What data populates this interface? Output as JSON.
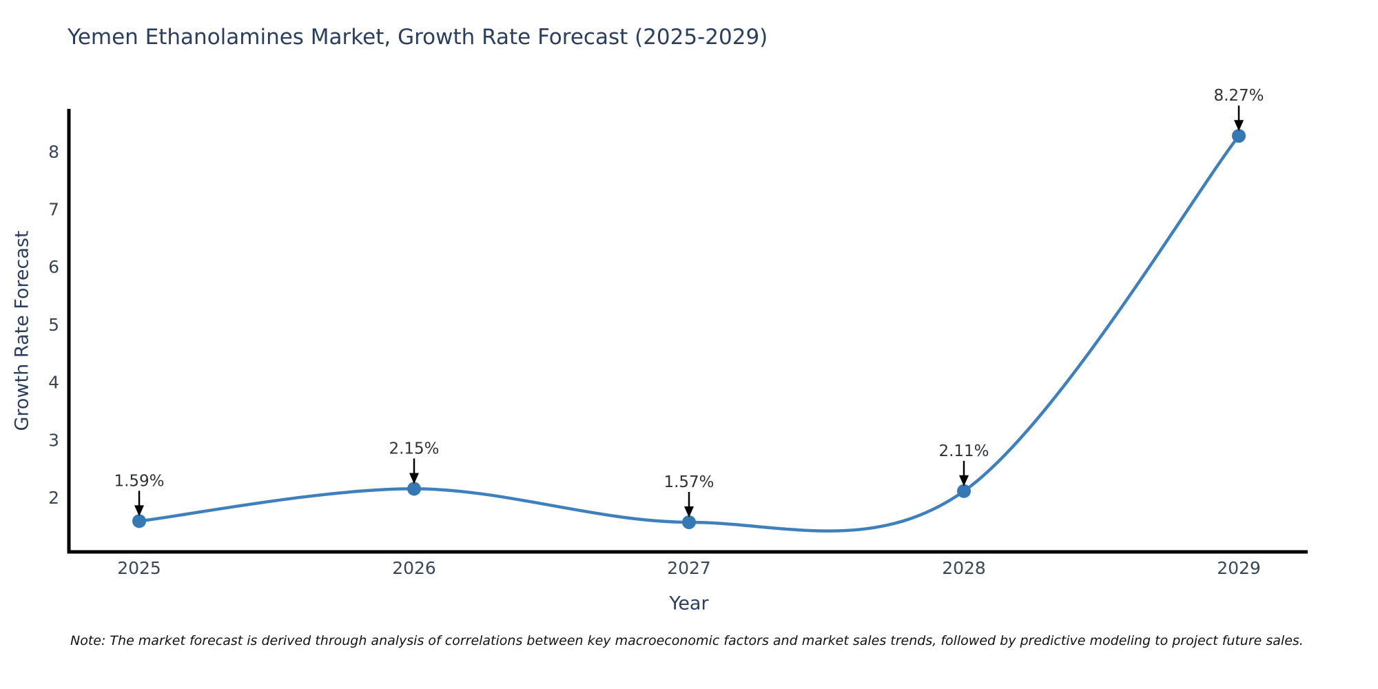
{
  "chart_data": {
    "type": "line",
    "title": "Yemen Ethanolamines Market, Growth Rate Forecast (2025-2029)",
    "xlabel": "Year",
    "ylabel": "Growth Rate Forecast",
    "x": [
      2025,
      2026,
      2027,
      2028,
      2029
    ],
    "values": [
      1.59,
      2.15,
      1.57,
      2.11,
      8.27
    ],
    "point_labels": [
      "1.59%",
      "2.15%",
      "1.57%",
      "2.11%",
      "8.27%"
    ],
    "y_ticks": [
      2,
      3,
      4,
      5,
      6,
      7,
      8
    ],
    "ylim": [
      1.05,
      8.7
    ],
    "line_shape": "spline",
    "grid": false,
    "legend": false,
    "note": "Note: The market forecast is derived through analysis of correlations between key macroeconomic factors and market sales trends, followed by predictive modeling to project future sales.",
    "colors": {
      "line": "#3d80bd",
      "marker": "#3478b4",
      "axis": "#000000",
      "title_text": "#2a3f5f",
      "tick_text": "#3b4654",
      "annotation_text": "#2e3338",
      "arrow": "#000000",
      "background": "#ffffff"
    }
  }
}
